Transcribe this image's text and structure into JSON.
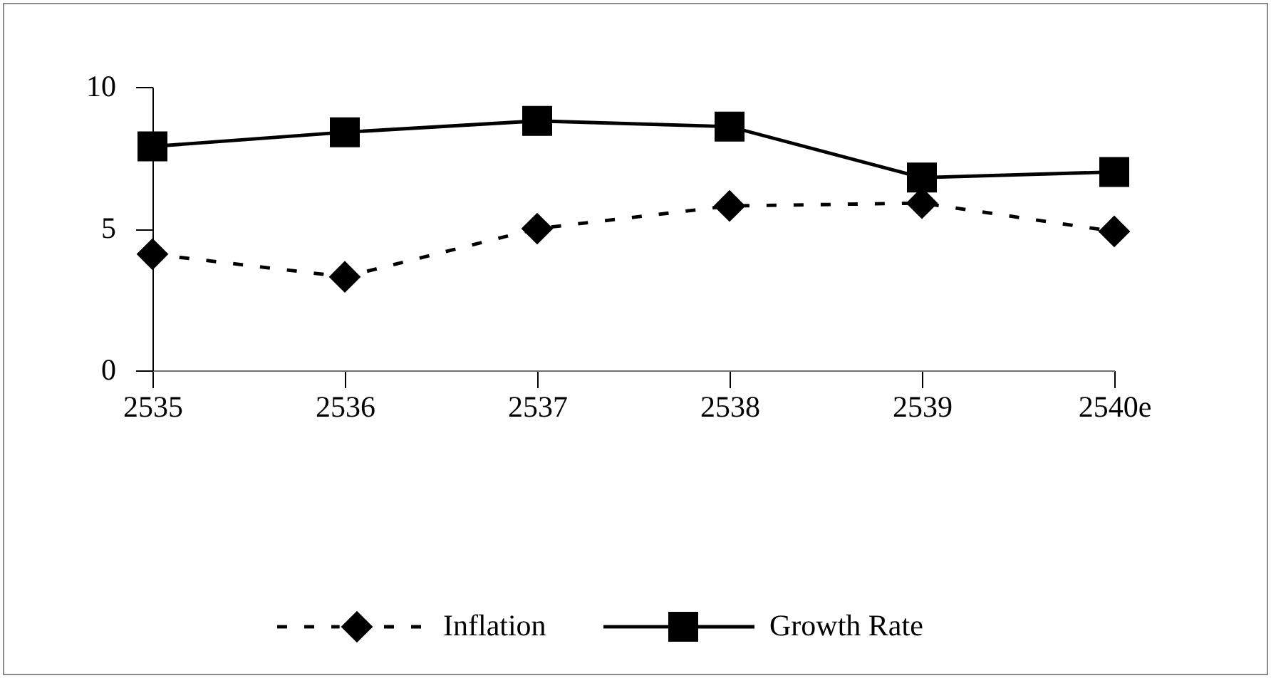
{
  "chart_data": {
    "type": "line",
    "categories": [
      "2535",
      "2536",
      "2537",
      "2538",
      "2539",
      "2540e"
    ],
    "series": [
      {
        "name": "Inflation",
        "color": "#000000",
        "values": [
          4.1,
          3.3,
          5.0,
          5.8,
          5.9,
          4.9
        ],
        "marker": "diamond",
        "line_style": "dashed"
      },
      {
        "name": "Growth Rate",
        "color": "#000000",
        "values": [
          7.9,
          8.4,
          8.8,
          8.6,
          6.8,
          7.0
        ],
        "marker": "square",
        "line_style": "solid"
      }
    ],
    "ylim": [
      0,
      10
    ],
    "yticks": [
      0,
      5,
      10
    ],
    "legend": "bottom"
  }
}
